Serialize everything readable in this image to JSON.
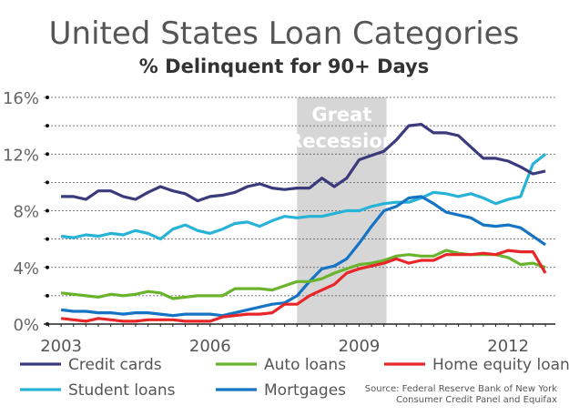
{
  "chart_data": {
    "type": "line",
    "title": "United States Loan Categories",
    "subtitle": "% Delinquent for 90+ Days",
    "xlabel": "",
    "ylabel": "",
    "ylim": [
      0,
      16
    ],
    "xlim": [
      2002.65,
      2012.95
    ],
    "yticks": [
      {
        "v": 0,
        "label": "0%"
      },
      {
        "v": 2,
        "label": ""
      },
      {
        "v": 4,
        "label": "4%"
      },
      {
        "v": 6,
        "label": ""
      },
      {
        "v": 8,
        "label": "8%"
      },
      {
        "v": 10,
        "label": ""
      },
      {
        "v": 12,
        "label": "12%"
      },
      {
        "v": 14,
        "label": ""
      },
      {
        "v": 16,
        "label": "16%"
      }
    ],
    "xticks": [
      {
        "v": 2003,
        "label": "2003"
      },
      {
        "v": 2006,
        "label": "2006"
      },
      {
        "v": 2009,
        "label": "2009"
      },
      {
        "v": 2012,
        "label": "2012"
      }
    ],
    "grid": true,
    "annotation": {
      "label_line1": "Great",
      "label_line2": "Recession",
      "x_start": 2007.75,
      "x_end": 2009.55
    },
    "x_start": 2003.0,
    "x_step": 0.25,
    "series": [
      {
        "name": "Credit cards",
        "color": "#3a3a7c",
        "values": [
          9.0,
          9.0,
          8.8,
          9.4,
          9.4,
          9.0,
          8.8,
          9.3,
          9.7,
          9.4,
          9.2,
          8.7,
          9.0,
          9.1,
          9.3,
          9.7,
          9.9,
          9.6,
          9.5,
          9.6,
          9.6,
          10.3,
          9.7,
          10.3,
          11.6,
          11.9,
          12.2,
          13.0,
          14.0,
          14.1,
          13.5,
          13.5,
          13.3,
          12.5,
          11.7,
          11.7,
          11.5,
          11.1,
          10.6,
          10.8
        ]
      },
      {
        "name": "Auto loans",
        "color": "#6ab42d",
        "values": [
          2.2,
          2.1,
          2.0,
          1.9,
          2.1,
          2.0,
          2.1,
          2.3,
          2.2,
          1.8,
          1.9,
          2.0,
          2.0,
          2.0,
          2.5,
          2.5,
          2.5,
          2.4,
          2.7,
          3.0,
          3.0,
          3.2,
          3.6,
          3.9,
          4.2,
          4.3,
          4.5,
          4.8,
          4.9,
          4.8,
          4.8,
          5.2,
          5.0,
          4.9,
          4.9,
          4.9,
          4.7,
          4.2,
          4.3,
          4.0
        ]
      },
      {
        "name": "Home equity loans",
        "color": "#e8262a",
        "values": [
          0.4,
          0.3,
          0.2,
          0.4,
          0.3,
          0.2,
          0.2,
          0.3,
          0.3,
          0.3,
          0.2,
          0.2,
          0.2,
          0.5,
          0.6,
          0.7,
          0.7,
          0.8,
          1.4,
          1.4,
          2.0,
          2.4,
          2.8,
          3.6,
          3.9,
          4.1,
          4.3,
          4.6,
          4.3,
          4.5,
          4.5,
          4.9,
          4.9,
          4.9,
          5.0,
          4.9,
          5.2,
          5.1,
          5.1,
          3.6
        ]
      },
      {
        "name": "Student loans",
        "color": "#27b2d8",
        "values": [
          6.2,
          6.1,
          6.3,
          6.2,
          6.4,
          6.3,
          6.6,
          6.4,
          6.0,
          6.7,
          7.0,
          6.6,
          6.4,
          6.7,
          7.1,
          7.2,
          6.9,
          7.3,
          7.6,
          7.5,
          7.6,
          7.6,
          7.8,
          8.0,
          8.0,
          8.3,
          8.5,
          8.6,
          8.6,
          8.9,
          9.3,
          9.2,
          9.0,
          9.2,
          8.9,
          8.5,
          8.8,
          9.0,
          11.3,
          12.0
        ]
      },
      {
        "name": "Mortgages",
        "color": "#1674c4",
        "values": [
          1.0,
          0.9,
          0.9,
          0.8,
          0.8,
          0.7,
          0.8,
          0.8,
          0.7,
          0.6,
          0.7,
          0.7,
          0.7,
          0.6,
          0.8,
          1.0,
          1.2,
          1.4,
          1.5,
          2.0,
          3.0,
          3.9,
          4.1,
          4.6,
          5.7,
          6.9,
          8.0,
          8.3,
          8.9,
          9.0,
          8.5,
          7.9,
          7.7,
          7.5,
          7.0,
          6.9,
          7.0,
          6.8,
          6.2,
          5.6
        ]
      }
    ],
    "source_line1": "Source: Federal Reserve Bank of New York",
    "source_line2": "Consumer Credit Panel and Equifax"
  }
}
